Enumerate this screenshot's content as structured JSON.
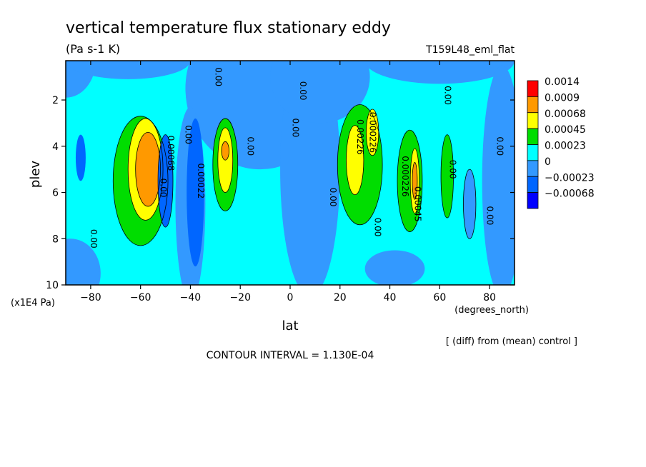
{
  "header": {
    "title": "vertical temperature flux stationary eddy",
    "units": "(Pa s-1 K)",
    "run_id": "T159L48_eml_flat"
  },
  "footer": {
    "contour_interval": "CONTOUR INTERVAL = 1.130E-04",
    "diff_note": "[ (diff) from (mean) control ]"
  },
  "chart_data": {
    "type": "contour",
    "xlabel": "lat",
    "x_units": "(degrees_north)",
    "ylabel": "plev",
    "y_units": "(x1E4 Pa)",
    "xlim": [
      -90,
      90
    ],
    "ylim": [
      10,
      0.3
    ],
    "x_ticks": [
      -80,
      -60,
      -40,
      -20,
      0,
      20,
      40,
      60,
      80
    ],
    "y_ticks": [
      2,
      4,
      6,
      8,
      10
    ],
    "colorbar": {
      "labels": [
        "0.0014",
        "0.0009",
        "0.00068",
        "0.00045",
        "0.00023",
        "0",
        "−0.00023",
        "−0.00068"
      ],
      "colors": [
        "#ff0000",
        "#ff9900",
        "#ffff00",
        "#00dd00",
        "#00ffff",
        "#3399ff",
        "#0066ff",
        "#0000ff"
      ]
    },
    "contour_labels": [
      {
        "text": "0.00",
        "lat": -30,
        "plev": 1.0
      },
      {
        "text": "0.00",
        "lat": 4,
        "plev": 1.6
      },
      {
        "text": "0.00",
        "lat": 1,
        "plev": 3.2
      },
      {
        "text": "0.00",
        "lat": 62,
        "plev": 1.8
      },
      {
        "text": "0.00",
        "lat": -42,
        "plev": 3.5
      },
      {
        "text": "0.00",
        "lat": -17,
        "plev": 4.0
      },
      {
        "text": "0.00",
        "lat": 16,
        "plev": 6.2
      },
      {
        "text": "0.00",
        "lat": 83,
        "plev": 4.0
      },
      {
        "text": "0.00",
        "lat": 64,
        "plev": 5.0
      },
      {
        "text": "0.00",
        "lat": 79,
        "plev": 7.0
      },
      {
        "text": "0.00",
        "lat": 34,
        "plev": 7.5
      },
      {
        "text": "0.00",
        "lat": -80,
        "plev": 8.0
      },
      {
        "text": "0.00022",
        "lat": -37,
        "plev": 5.5
      },
      {
        "text": "0.00",
        "lat": -52,
        "plev": 5.8
      },
      {
        "text": "0.00068",
        "lat": -49,
        "plev": 4.3
      },
      {
        "text": "0.00226",
        "lat": 27,
        "plev": 3.6
      },
      {
        "text": "0.000226",
        "lat": 32,
        "plev": 3.4
      },
      {
        "text": "0.000226",
        "lat": 45,
        "plev": 5.3
      },
      {
        "text": "0.00045",
        "lat": 50,
        "plev": 6.5
      }
    ]
  }
}
